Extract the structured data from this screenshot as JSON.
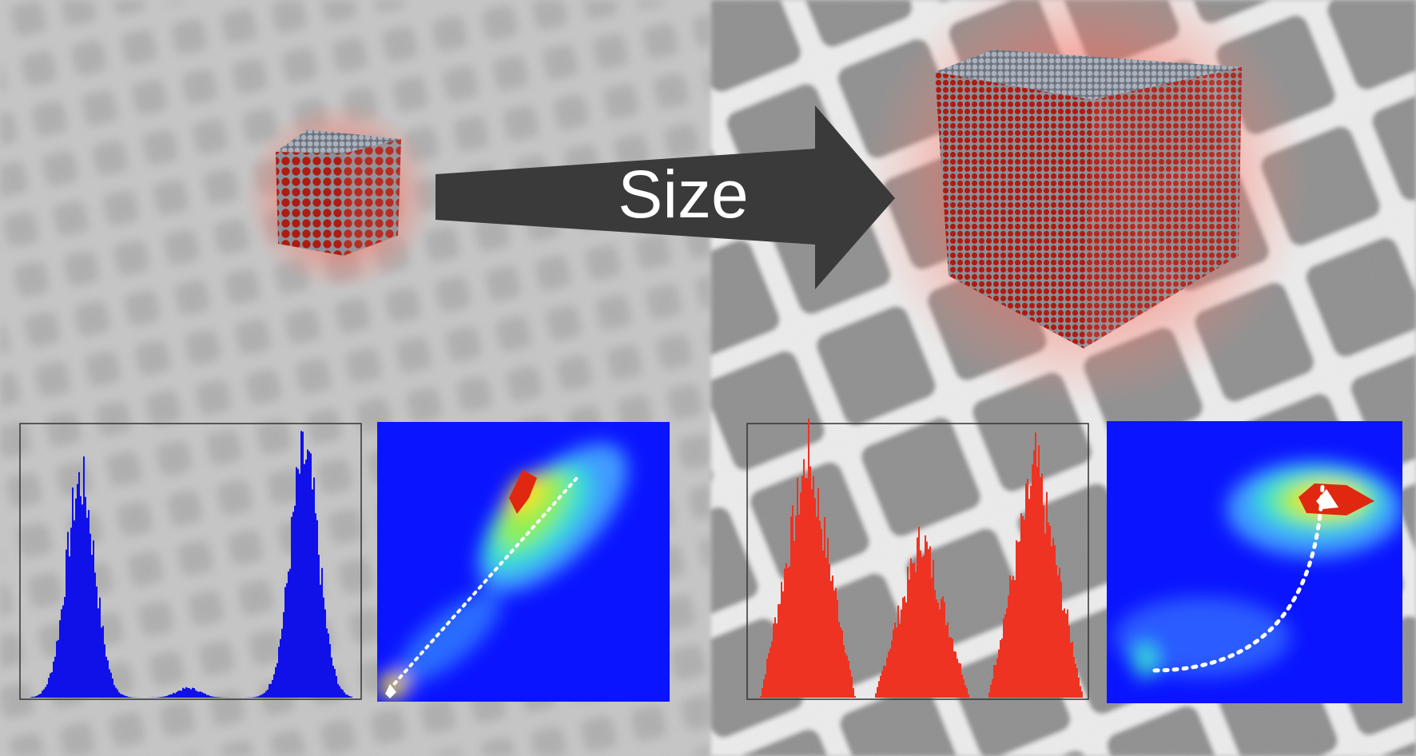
{
  "arrow": {
    "label": "Size"
  }
}
